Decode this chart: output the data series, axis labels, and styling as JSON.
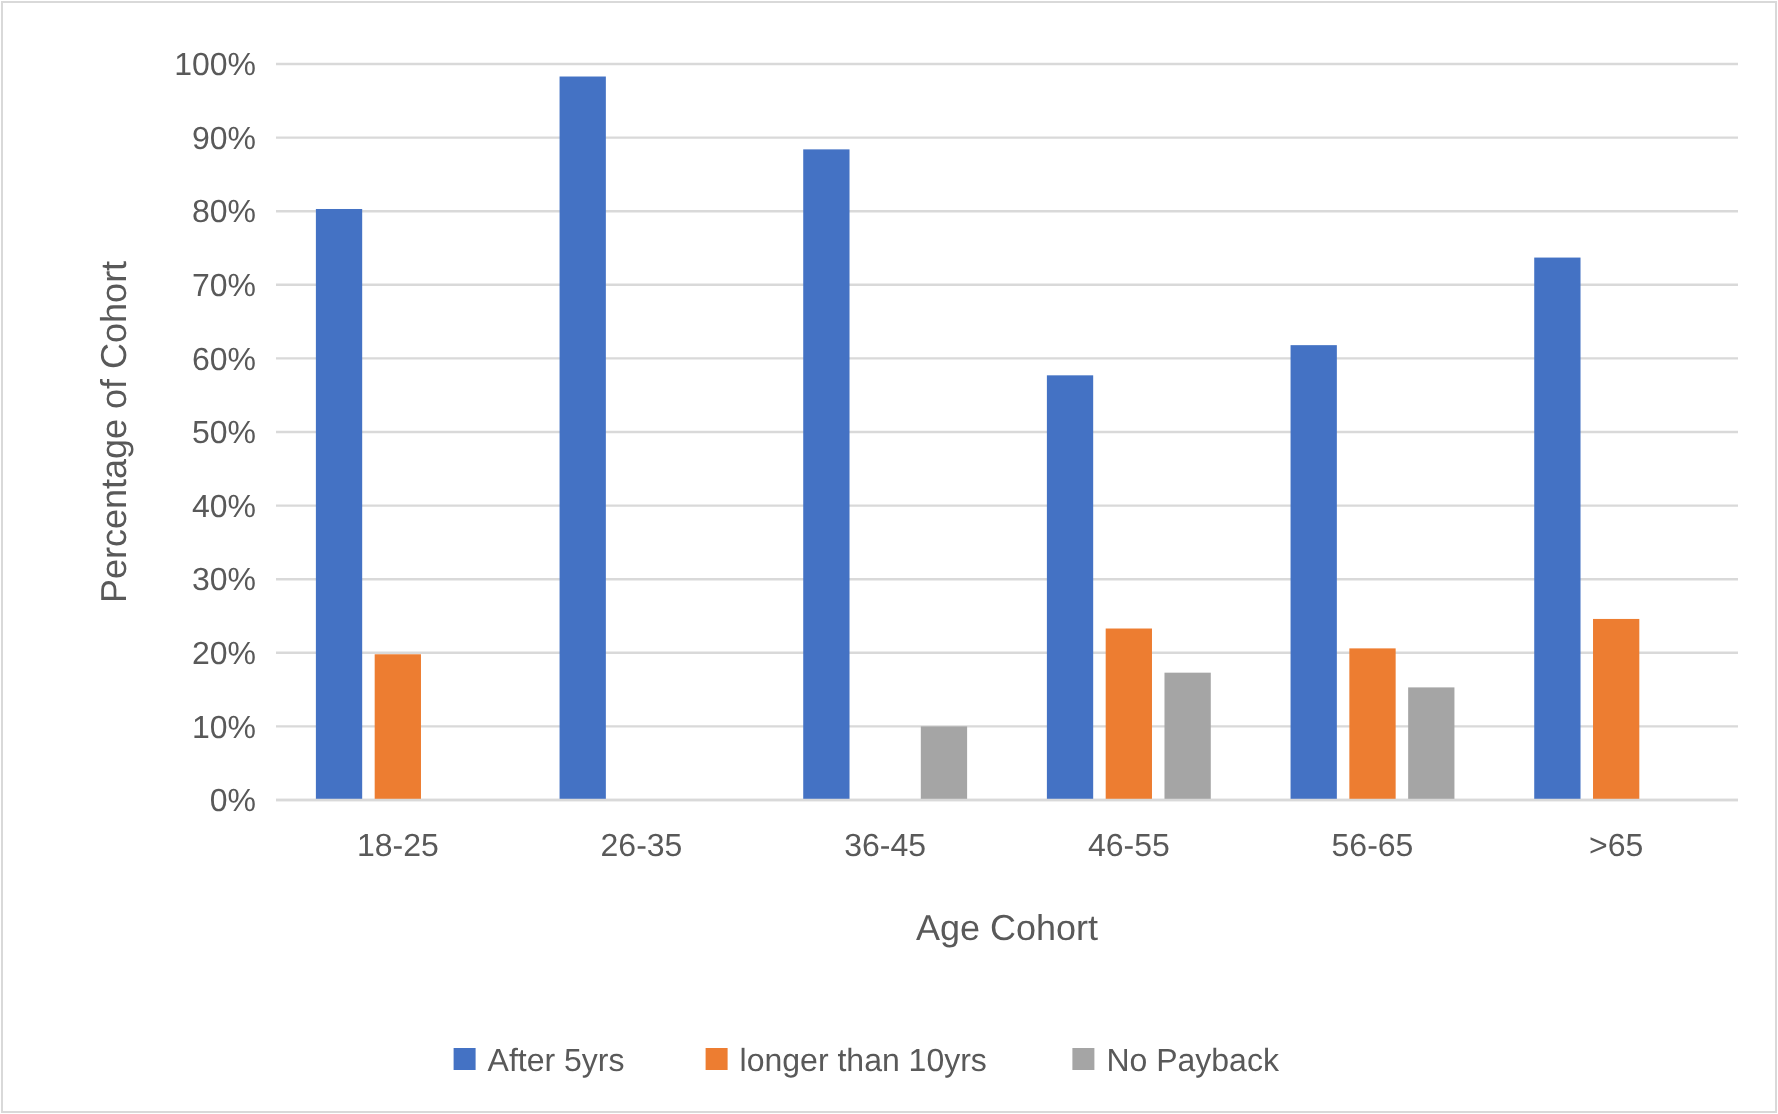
{
  "chart_data": {
    "type": "bar",
    "xlabel": "Age Cohort",
    "ylabel": "Percentage of Cohort",
    "categories": [
      "18-25",
      "26-35",
      "36-45",
      "46-55",
      "56-65",
      ">65"
    ],
    "series": [
      {
        "name": "After 5yrs",
        "color": "#4472c4",
        "values": [
          80.3,
          98.3,
          88.4,
          57.7,
          61.8,
          73.7
        ]
      },
      {
        "name": "longer than 10yrs",
        "color": "#ed7d31",
        "values": [
          19.8,
          null,
          null,
          23.3,
          20.6,
          24.6
        ]
      },
      {
        "name": "No Payback",
        "color": "#a5a5a5",
        "values": [
          null,
          null,
          10,
          17.3,
          15.3,
          null
        ]
      }
    ],
    "ylim": [
      0,
      100
    ],
    "yticks": [
      {
        "value": 0,
        "label": "0%"
      },
      {
        "value": 10,
        "label": "10%"
      },
      {
        "value": 20,
        "label": "20%"
      },
      {
        "value": 30,
        "label": "30%"
      },
      {
        "value": 40,
        "label": "40%"
      },
      {
        "value": 50,
        "label": "50%"
      },
      {
        "value": 60,
        "label": "60%"
      },
      {
        "value": 70,
        "label": "70%"
      },
      {
        "value": 80,
        "label": "80%"
      },
      {
        "value": 90,
        "label": "90%"
      },
      {
        "value": 100,
        "label": "100%"
      }
    ],
    "grid": "y",
    "legend": "bottom"
  }
}
